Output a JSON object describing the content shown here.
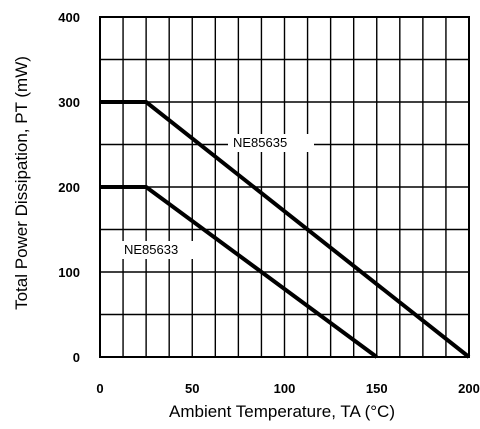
{
  "chart_data": {
    "type": "line",
    "xlabel": "Ambient Temperature, TA (°C)",
    "ylabel": "Total Power Dissipation, PT (mW)",
    "xlim": [
      0,
      200
    ],
    "ylim": [
      0,
      400
    ],
    "x_ticks": [
      "0",
      "50",
      "100",
      "150",
      "200"
    ],
    "y_ticks": [
      "0",
      "100",
      "200",
      "300",
      "400"
    ],
    "grid": true,
    "series": [
      {
        "name": "NE85635",
        "x": [
          0,
          25,
          200
        ],
        "y": [
          300,
          300,
          0
        ]
      },
      {
        "name": "NE85633",
        "x": [
          0,
          25,
          150
        ],
        "y": [
          200,
          200,
          0
        ]
      }
    ],
    "colors": {
      "line": "#000000",
      "grid": "#000000",
      "background": "#ffffff"
    }
  }
}
